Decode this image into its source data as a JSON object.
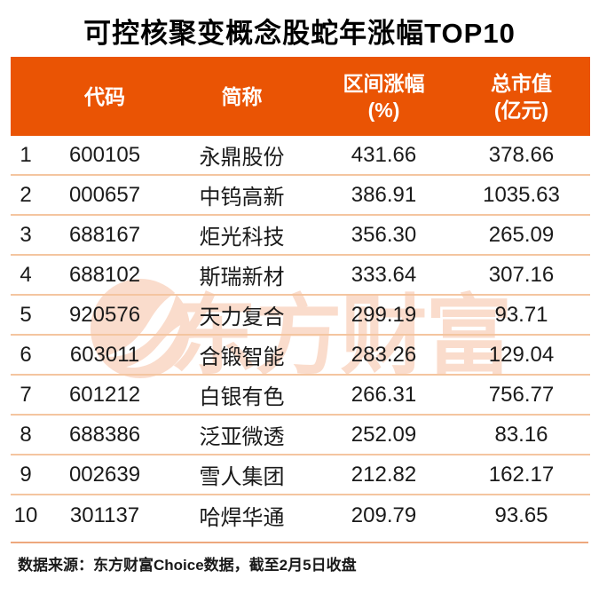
{
  "title": "可控核聚变概念股蛇年涨幅TOP10",
  "colors": {
    "accent": "#EA5404",
    "separator": "#F4C5A0",
    "separator_strong": "#EDA87D",
    "watermark": "#FADCCC",
    "text": "#1A1A1A"
  },
  "watermark": {
    "text": "东方财富",
    "logo": "eastmoney-flame-logo"
  },
  "table": {
    "headers": {
      "rank": "",
      "code": "代码",
      "name": "简称",
      "gain_line1": "区间涨幅",
      "gain_line2": "(%)",
      "cap_line1": "总市值",
      "cap_line2": "(亿元)"
    },
    "rows": [
      {
        "rank": "1",
        "code": "600105",
        "name": "永鼎股份",
        "gain": "431.66",
        "cap": "378.66"
      },
      {
        "rank": "2",
        "code": "000657",
        "name": "中钨高新",
        "gain": "386.91",
        "cap": "1035.63"
      },
      {
        "rank": "3",
        "code": "688167",
        "name": "炬光科技",
        "gain": "356.30",
        "cap": "265.09"
      },
      {
        "rank": "4",
        "code": "688102",
        "name": "斯瑞新材",
        "gain": "333.64",
        "cap": "307.16"
      },
      {
        "rank": "5",
        "code": "920576",
        "name": "天力复合",
        "gain": "299.19",
        "cap": "93.71"
      },
      {
        "rank": "6",
        "code": "603011",
        "name": "合锻智能",
        "gain": "283.26",
        "cap": "129.04"
      },
      {
        "rank": "7",
        "code": "601212",
        "name": "白银有色",
        "gain": "266.31",
        "cap": "756.77"
      },
      {
        "rank": "8",
        "code": "688386",
        "name": "泛亚微透",
        "gain": "252.09",
        "cap": "83.16"
      },
      {
        "rank": "9",
        "code": "002639",
        "name": "雪人集团",
        "gain": "212.82",
        "cap": "162.17"
      },
      {
        "rank": "10",
        "code": "301137",
        "name": "哈焊华通",
        "gain": "209.79",
        "cap": "93.65"
      }
    ]
  },
  "footer": {
    "source": "数据来源：东方财富Choice数据，截至2月5日收盘"
  },
  "chart_data": {
    "type": "table",
    "title": "可控核聚变概念股蛇年涨幅TOP10",
    "columns": [
      "",
      "代码",
      "简称",
      "区间涨幅(%)",
      "总市值(亿元)"
    ],
    "rows": [
      [
        "1",
        "600105",
        "永鼎股份",
        431.66,
        378.66
      ],
      [
        "2",
        "000657",
        "中钨高新",
        386.91,
        1035.63
      ],
      [
        "3",
        "688167",
        "炬光科技",
        356.3,
        265.09
      ],
      [
        "4",
        "688102",
        "斯瑞新材",
        333.64,
        307.16
      ],
      [
        "5",
        "920576",
        "天力复合",
        299.19,
        93.71
      ],
      [
        "6",
        "603011",
        "合锻智能",
        283.26,
        129.04
      ],
      [
        "7",
        "601212",
        "白银有色",
        266.31,
        756.77
      ],
      [
        "8",
        "688386",
        "泛亚微透",
        252.09,
        83.16
      ],
      [
        "9",
        "002639",
        "雪人集团",
        212.82,
        162.17
      ],
      [
        "10",
        "301137",
        "哈焊华通",
        209.79,
        93.65
      ]
    ],
    "source_note": "数据来源：东方财富Choice数据，截至2月5日收盘",
    "header_background": "#EA5404",
    "layout": "ranked list, numeric columns centered, light orange row separators"
  }
}
